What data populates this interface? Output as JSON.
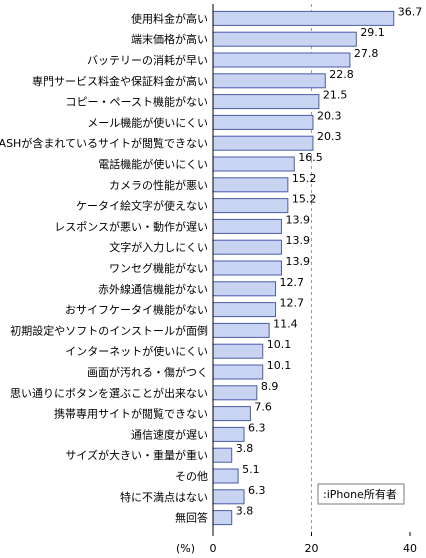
{
  "chart_data": {
    "type": "bar",
    "orientation": "horizontal",
    "categories": [
      "使用料金が高い",
      "端末価格が高い",
      "バッテリーの消耗が早い",
      "専門サービス料金や保証料金が高い",
      "コピー・ペースト機能がない",
      "メール機能が使いにくい",
      "FLASHが含まれているサイトが閲覧できない",
      "電話機能が使いにくい",
      "カメラの性能が悪い",
      "ケータイ絵文字が使えない",
      "レスポンスが悪い・動作が遅い",
      "文字が入力しにくい",
      "ワンセグ機能がない",
      "赤外線通信機能がない",
      "おサイフケータイ機能がない",
      "初期設定やソフトのインストールが面倒",
      "インターネットが使いにくい",
      "画面が汚れる・傷がつく",
      "思い通りにボタンを選ぶことが出来ない",
      "携帯専用サイトが閲覧できない",
      "通信速度が遅い",
      "サイズが大きい・重量が重い",
      "その他",
      "特に不満点はない",
      "無回答"
    ],
    "values": [
      36.7,
      29.1,
      27.8,
      22.8,
      21.5,
      20.3,
      20.3,
      16.5,
      15.2,
      15.2,
      13.9,
      13.9,
      13.9,
      12.7,
      12.7,
      11.4,
      10.1,
      10.1,
      8.9,
      7.6,
      6.3,
      3.8,
      5.1,
      6.3,
      3.8
    ],
    "value_labels": [
      "36.7",
      "29.1",
      "27.8",
      "22.8",
      "21.5",
      "20.3",
      "20.3",
      "16.5",
      "15.2",
      "15.2",
      "13.9",
      "13.9",
      "13.9",
      "12.7",
      "12.7",
      "11.4",
      "10.1",
      "10.1",
      "8.9",
      "7.6",
      "6.3",
      "3.8",
      "5.1",
      "6.3",
      "3.8"
    ],
    "xlabel": "(%)",
    "xlim": [
      0,
      40
    ],
    "xticks": [
      0,
      20,
      40
    ],
    "xtick_labels": [
      "0",
      "20",
      "40"
    ],
    "gridlines": [
      20
    ],
    "legend": ":iPhone所有者",
    "legend_position": "bottom-right",
    "bar_fill": "#c9d3f2",
    "bar_stroke": "#4a5ea8"
  }
}
